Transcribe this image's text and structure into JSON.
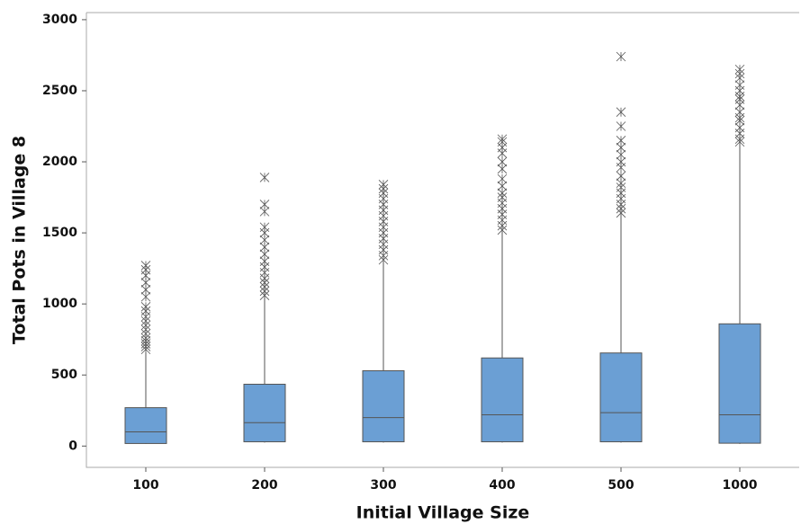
{
  "chart_data": {
    "type": "boxplot",
    "x_label": "Initial Village Size",
    "y_label": "Total Pots in Village 8",
    "categories": [
      "100",
      "200",
      "300",
      "400",
      "500",
      "1000"
    ],
    "color": "#6b9fd4",
    "ylim": [
      -150,
      3050
    ],
    "yticks": [
      0,
      500,
      1000,
      1500,
      2000,
      2500,
      3000
    ],
    "boxes": [
      {
        "whisker_low": 15,
        "q1": 18,
        "median": 100,
        "q3": 270,
        "whisker_high": 660,
        "outliers": [
          680,
          700,
          720,
          740,
          760,
          790,
          820,
          850,
          880,
          910,
          950,
          980,
          1050,
          1100,
          1150,
          1200,
          1240,
          1270
        ]
      },
      {
        "whisker_low": 25,
        "q1": 30,
        "median": 165,
        "q3": 435,
        "whisker_high": 1050,
        "outliers": [
          1060,
          1090,
          1120,
          1150,
          1180,
          1220,
          1260,
          1300,
          1350,
          1400,
          1450,
          1500,
          1540,
          1650,
          1700,
          1890
        ]
      },
      {
        "whisker_low": 25,
        "q1": 30,
        "median": 200,
        "q3": 530,
        "whisker_high": 1300,
        "outliers": [
          1310,
          1340,
          1380,
          1420,
          1460,
          1500,
          1540,
          1580,
          1620,
          1660,
          1700,
          1740,
          1780,
          1810,
          1840
        ]
      },
      {
        "whisker_low": 25,
        "q1": 30,
        "median": 220,
        "q3": 620,
        "whisker_high": 1510,
        "outliers": [
          1520,
          1550,
          1590,
          1630,
          1670,
          1710,
          1750,
          1780,
          1830,
          1880,
          1950,
          2000,
          2060,
          2100,
          2140,
          2160
        ]
      },
      {
        "whisker_low": 25,
        "q1": 30,
        "median": 235,
        "q3": 655,
        "whisker_high": 1630,
        "outliers": [
          1640,
          1670,
          1700,
          1740,
          1780,
          1820,
          1850,
          1900,
          1960,
          2000,
          2050,
          2100,
          2150,
          2250,
          2350,
          2740
        ]
      },
      {
        "whisker_low": 15,
        "q1": 20,
        "median": 220,
        "q3": 860,
        "whisker_high": 2130,
        "outliers": [
          2140,
          2160,
          2200,
          2240,
          2290,
          2310,
          2350,
          2400,
          2440,
          2460,
          2500,
          2540,
          2590,
          2620,
          2650
        ]
      }
    ]
  }
}
